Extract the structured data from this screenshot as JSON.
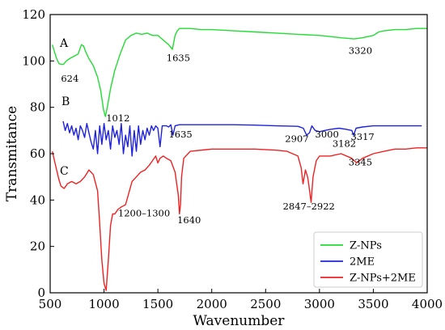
{
  "chart_data": {
    "type": "line",
    "title": "",
    "xlabel": "Wavenumber",
    "ylabel": "Transmitance",
    "xlim": [
      500,
      4000
    ],
    "ylim": [
      0,
      120
    ],
    "xticks": [
      500,
      1000,
      1500,
      2000,
      2500,
      3000,
      3500,
      4000
    ],
    "yticks": [
      0,
      20,
      40,
      60,
      80,
      100,
      120
    ],
    "legend_position": "bottom-right",
    "series": [
      {
        "name": "Z-NPs",
        "color": "#22dd33",
        "letter": "A",
        "x": [
          520,
          540,
          560,
          580,
          600,
          624,
          650,
          680,
          720,
          760,
          790,
          810,
          830,
          860,
          900,
          940,
          970,
          995,
          1012,
          1030,
          1060,
          1100,
          1150,
          1200,
          1250,
          1300,
          1350,
          1400,
          1450,
          1500,
          1550,
          1600,
          1635,
          1660,
          1680,
          1700,
          1750,
          1800,
          1900,
          2000,
          2200,
          2400,
          2600,
          2800,
          3000,
          3100,
          3200,
          3320,
          3400,
          3500,
          3550,
          3600,
          3700,
          3800,
          3900,
          4000
        ],
        "y": [
          107,
          104,
          101,
          99,
          98.5,
          98.5,
          100,
          101,
          102,
          103,
          107,
          106.5,
          104,
          101,
          98,
          93,
          87,
          79,
          76,
          80,
          88,
          96,
          103,
          109,
          111,
          112,
          111.5,
          112,
          111,
          111,
          109,
          107,
          105,
          111,
          113,
          114,
          114,
          114,
          113.5,
          113.5,
          113,
          112.5,
          112,
          111.5,
          111,
          110.5,
          110,
          109.5,
          110,
          111,
          112.5,
          113,
          113.5,
          113.5,
          114,
          114
        ]
      },
      {
        "name": "2ME",
        "color": "#1f22dd",
        "letter": "B",
        "x": [
          620,
          640,
          660,
          680,
          700,
          720,
          740,
          760,
          780,
          800,
          820,
          840,
          860,
          880,
          900,
          920,
          940,
          960,
          980,
          1000,
          1020,
          1040,
          1060,
          1080,
          1100,
          1120,
          1140,
          1160,
          1180,
          1200,
          1220,
          1240,
          1260,
          1280,
          1300,
          1320,
          1340,
          1360,
          1380,
          1400,
          1420,
          1440,
          1460,
          1480,
          1500,
          1520,
          1540,
          1560,
          1580,
          1600,
          1620,
          1640,
          1660,
          1700,
          1800,
          2000,
          2200,
          2400,
          2600,
          2800,
          2850,
          2880,
          2907,
          2930,
          2960,
          3000,
          3050,
          3100,
          3182,
          3250,
          3300,
          3317,
          3340,
          3400,
          3500,
          3700,
          3900,
          3950
        ],
        "y": [
          74,
          70,
          73,
          69,
          72,
          68,
          71,
          66,
          72,
          70,
          67,
          73,
          69,
          65,
          62,
          70,
          60,
          72,
          64,
          73,
          66,
          70,
          62,
          72,
          67,
          70,
          64,
          73,
          60,
          68,
          63,
          72,
          59,
          70,
          61,
          72,
          64,
          70,
          66,
          71,
          68,
          72,
          70,
          72,
          71,
          63,
          72,
          72,
          72,
          71.5,
          72.5,
          68,
          72,
          72.5,
          72.5,
          72.5,
          72.5,
          72.3,
          72,
          71.8,
          71,
          68,
          69,
          72,
          70,
          69.5,
          70,
          70.5,
          71,
          70.5,
          70,
          68,
          71,
          71.5,
          72,
          72,
          72,
          72
        ]
      },
      {
        "name": "Z-NPs+2ME",
        "color": "#ee2222",
        "letter": "C",
        "x": [
          520,
          540,
          560,
          580,
          600,
          630,
          660,
          700,
          740,
          780,
          820,
          860,
          900,
          940,
          960,
          980,
          1000,
          1020,
          1040,
          1060,
          1080,
          1100,
          1130,
          1160,
          1200,
          1230,
          1260,
          1300,
          1340,
          1380,
          1420,
          1450,
          1480,
          1500,
          1520,
          1550,
          1580,
          1620,
          1660,
          1690,
          1700,
          1710,
          1720,
          1740,
          1800,
          2000,
          2200,
          2400,
          2600,
          2700,
          2800,
          2830,
          2847,
          2870,
          2890,
          2900,
          2922,
          2940,
          2970,
          3000,
          3100,
          3200,
          3300,
          3345,
          3400,
          3500,
          3600,
          3700,
          3800,
          3900,
          4000
        ],
        "y": [
          61,
          57,
          53,
          49,
          46,
          45,
          47,
          48,
          47,
          48,
          50,
          53,
          51,
          44,
          30,
          14,
          4,
          1,
          14,
          29,
          34,
          34,
          36,
          37,
          38,
          43,
          48,
          50,
          52,
          53,
          55,
          57,
          59,
          56,
          58,
          59,
          58,
          57,
          52,
          42,
          34,
          38,
          50,
          58,
          61,
          62,
          62,
          62,
          61.5,
          61,
          59,
          54,
          47,
          53,
          50,
          47,
          39,
          50,
          57,
          59,
          59,
          60,
          58,
          56,
          58,
          60,
          61,
          62,
          62,
          62.5,
          62.5
        ]
      }
    ],
    "annotations": [
      {
        "text": "624",
        "x": 600,
        "y": 91
      },
      {
        "text": "1012",
        "x": 1020,
        "y": 74
      },
      {
        "text": "1635",
        "x": 1580,
        "y": 100
      },
      {
        "text": "3320",
        "x": 3270,
        "y": 103
      },
      {
        "text": "1635",
        "x": 1600,
        "y": 67
      },
      {
        "text": "2907",
        "x": 2680,
        "y": 65
      },
      {
        "text": "3000",
        "x": 2960,
        "y": 67
      },
      {
        "text": "3182",
        "x": 3120,
        "y": 63
      },
      {
        "text": "3317",
        "x": 3290,
        "y": 66
      },
      {
        "text": "1200–1300",
        "x": 1130,
        "y": 33
      },
      {
        "text": "1640",
        "x": 1680,
        "y": 30
      },
      {
        "text": "2847–2922",
        "x": 2660,
        "y": 36
      },
      {
        "text": "3345",
        "x": 3270,
        "y": 55
      }
    ],
    "trace_letters": [
      {
        "text": "A",
        "x": 590,
        "y": 106
      },
      {
        "text": "B",
        "x": 605,
        "y": 81
      },
      {
        "text": "C",
        "x": 590,
        "y": 51
      }
    ]
  }
}
